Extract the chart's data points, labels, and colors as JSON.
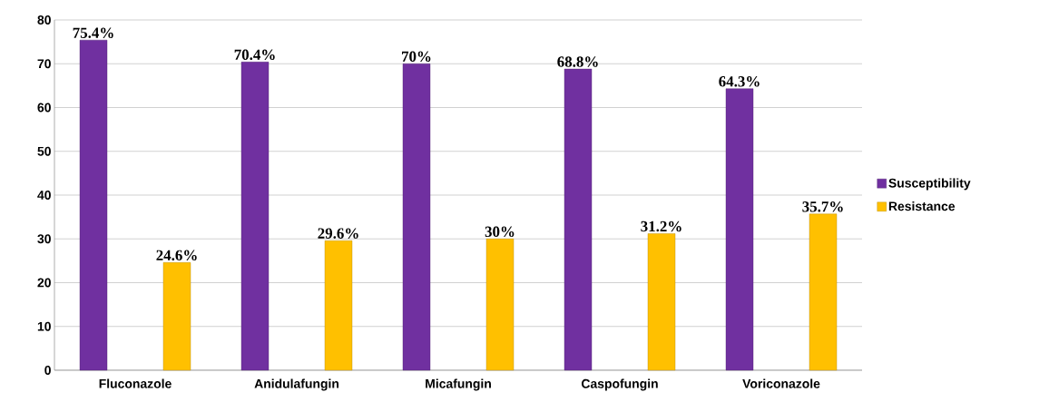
{
  "chart_data": {
    "type": "bar",
    "categories": [
      "Fluconazole",
      "Anidulafungin",
      "Micafungin",
      "Caspofungin",
      "Voriconazole"
    ],
    "series": [
      {
        "name": "Susceptibility",
        "color": "#7030a0",
        "values": [
          75.4,
          70.4,
          70,
          68.8,
          64.3
        ],
        "value_labels": [
          "75.4%",
          "70.4%",
          "70%",
          "68.8%",
          "64.3%"
        ]
      },
      {
        "name": "Resistance",
        "color": "#ffc000",
        "values": [
          24.6,
          29.6,
          30,
          31.2,
          35.7
        ],
        "value_labels": [
          "24.6%",
          "29.6%",
          "30%",
          "31.2%",
          "35.7%"
        ]
      }
    ],
    "ylim": [
      0,
      80
    ],
    "yticks": [
      0,
      10,
      20,
      30,
      40,
      50,
      60,
      70,
      80
    ],
    "grid": "y",
    "legend": "right"
  }
}
